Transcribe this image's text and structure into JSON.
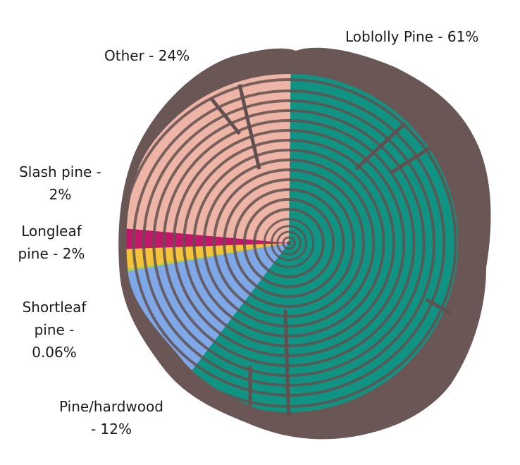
{
  "chart_data": {
    "type": "pie",
    "title": "",
    "style": "tree-ring cross-section pie",
    "center": [
      410,
      345
    ],
    "start_angle_deg": 0,
    "direction": "clockwise",
    "slices": [
      {
        "name": "Loblolly Pine",
        "value": 61,
        "label": "Loblolly Pine - 61%",
        "color": "#0f9484"
      },
      {
        "name": "Pine/hardwood",
        "value": 12,
        "label": "Pine/hardwood - 12%",
        "color": "#7fa8e8"
      },
      {
        "name": "Shortleaf pine",
        "value": 0.06,
        "label": "Shortleaf pine - 0.06%",
        "color": "#a8d84a"
      },
      {
        "name": "Longleaf pine",
        "value": 2,
        "label": "Longleaf pine - 2%",
        "color": "#f3c43a"
      },
      {
        "name": "Slash pine",
        "value": 2,
        "label": "Slash pine - 2%",
        "color": "#c3166a"
      },
      {
        "name": "Other",
        "value": 24,
        "label": "Other - 24%",
        "color": "#eeb4a6"
      }
    ],
    "bark_color": "#6a5655",
    "ring_color": "#61504f"
  },
  "labels": {
    "loblolly": "Loblolly Pine - 61%",
    "other": "Other - 24%",
    "slash_1": "Slash pine -",
    "slash_2": "2%",
    "longleaf_1": "Longleaf",
    "longleaf_2": "pine - 2%",
    "shortleaf_1": "Shortleaf",
    "shortleaf_2": "pine -",
    "shortleaf_3": "0.06%",
    "pinehw_1": "Pine/hardwood",
    "pinehw_2": "- 12%"
  }
}
